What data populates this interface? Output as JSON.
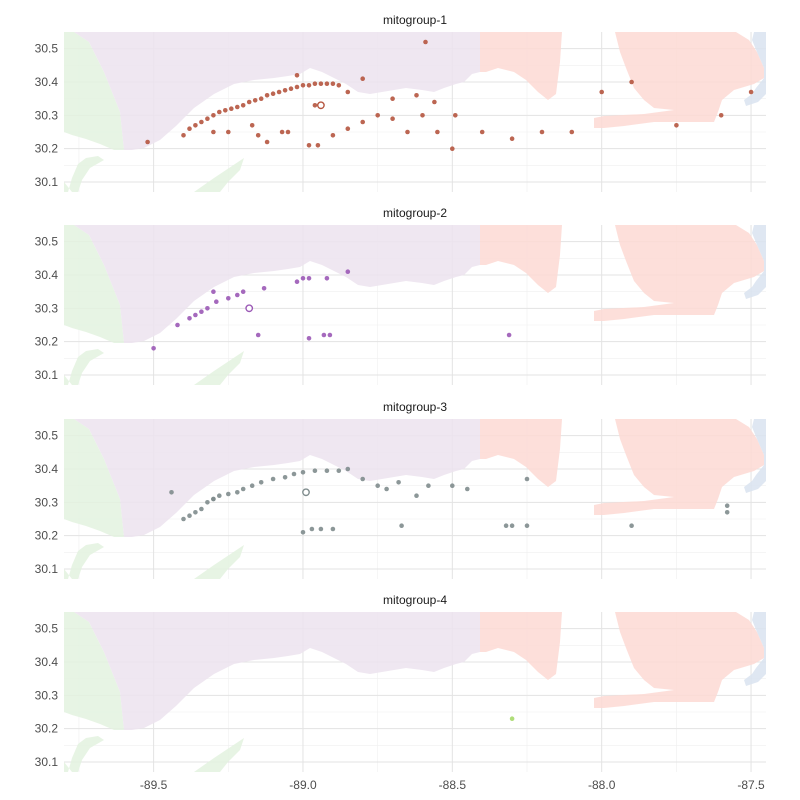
{
  "chart_data": {
    "type": "scatter",
    "title": "",
    "xlabel": "",
    "ylabel": "",
    "xlim": [
      -89.8,
      -87.45
    ],
    "ylim": [
      30.07,
      30.55
    ],
    "x_ticks": [
      "-89.5",
      "-89.0",
      "-88.5",
      "-88.0",
      "-87.5"
    ],
    "y_ticks": [
      "30.1",
      "30.2",
      "30.3",
      "30.4",
      "30.5"
    ],
    "grid": true,
    "region_colors": {
      "louisiana": "#e3f2df",
      "mississippi": "#ece3ef",
      "alabama": "#fdd9d4",
      "florida": "#d9e3f0"
    },
    "panels": [
      {
        "title": "mitogroup-1",
        "color": "#b5553f",
        "centroid": [
          -88.94,
          30.33
        ],
        "points": [
          [
            -89.52,
            30.22
          ],
          [
            -89.4,
            30.24
          ],
          [
            -89.38,
            30.26
          ],
          [
            -89.36,
            30.27
          ],
          [
            -89.34,
            30.28
          ],
          [
            -89.32,
            30.29
          ],
          [
            -89.3,
            30.3
          ],
          [
            -89.28,
            30.31
          ],
          [
            -89.26,
            30.315
          ],
          [
            -89.24,
            30.32
          ],
          [
            -89.22,
            30.325
          ],
          [
            -89.2,
            30.33
          ],
          [
            -89.18,
            30.34
          ],
          [
            -89.16,
            30.345
          ],
          [
            -89.14,
            30.35
          ],
          [
            -89.12,
            30.36
          ],
          [
            -89.1,
            30.365
          ],
          [
            -89.08,
            30.37
          ],
          [
            -89.06,
            30.375
          ],
          [
            -89.04,
            30.38
          ],
          [
            -89.02,
            30.385
          ],
          [
            -89.0,
            30.39
          ],
          [
            -88.98,
            30.39
          ],
          [
            -88.96,
            30.395
          ],
          [
            -88.94,
            30.395
          ],
          [
            -88.92,
            30.395
          ],
          [
            -88.9,
            30.395
          ],
          [
            -88.88,
            30.39
          ],
          [
            -89.3,
            30.25
          ],
          [
            -89.25,
            30.25
          ],
          [
            -89.17,
            30.27
          ],
          [
            -89.15,
            30.24
          ],
          [
            -89.12,
            30.22
          ],
          [
            -89.07,
            30.25
          ],
          [
            -89.05,
            30.25
          ],
          [
            -88.98,
            30.21
          ],
          [
            -88.95,
            30.21
          ],
          [
            -88.9,
            30.24
          ],
          [
            -88.85,
            30.26
          ],
          [
            -88.8,
            30.28
          ],
          [
            -88.75,
            30.3
          ],
          [
            -88.7,
            30.29
          ],
          [
            -88.65,
            30.25
          ],
          [
            -88.6,
            30.3
          ],
          [
            -88.55,
            30.25
          ],
          [
            -88.5,
            30.2
          ],
          [
            -88.4,
            30.25
          ],
          [
            -88.3,
            30.23
          ],
          [
            -88.2,
            30.25
          ],
          [
            -88.1,
            30.25
          ],
          [
            -88.0,
            30.37
          ],
          [
            -87.9,
            30.4
          ],
          [
            -87.75,
            30.27
          ],
          [
            -87.6,
            30.3
          ],
          [
            -87.5,
            30.37
          ],
          [
            -87.42,
            30.46
          ],
          [
            -88.85,
            30.37
          ],
          [
            -88.8,
            30.41
          ],
          [
            -88.7,
            30.35
          ],
          [
            -88.62,
            30.36
          ],
          [
            -88.56,
            30.34
          ],
          [
            -88.49,
            30.3
          ],
          [
            -88.59,
            30.52
          ],
          [
            -89.02,
            30.42
          ],
          [
            -88.96,
            30.33
          ]
        ]
      },
      {
        "title": "mitogroup-2",
        "color": "#9b59b6",
        "centroid": [
          -89.18,
          30.3
        ],
        "points": [
          [
            -89.5,
            30.18
          ],
          [
            -89.42,
            30.25
          ],
          [
            -89.38,
            30.27
          ],
          [
            -89.36,
            30.28
          ],
          [
            -89.34,
            30.29
          ],
          [
            -89.32,
            30.3
          ],
          [
            -89.29,
            30.32
          ],
          [
            -89.25,
            30.33
          ],
          [
            -89.22,
            30.34
          ],
          [
            -89.2,
            30.35
          ],
          [
            -89.13,
            30.36
          ],
          [
            -89.02,
            30.38
          ],
          [
            -89.0,
            30.39
          ],
          [
            -88.98,
            30.39
          ],
          [
            -88.92,
            30.39
          ],
          [
            -88.85,
            30.41
          ],
          [
            -89.3,
            30.35
          ],
          [
            -89.15,
            30.22
          ],
          [
            -88.98,
            30.21
          ],
          [
            -88.93,
            30.22
          ],
          [
            -88.91,
            30.22
          ],
          [
            -88.31,
            30.22
          ]
        ]
      },
      {
        "title": "mitogroup-3",
        "color": "#7f8c8d",
        "centroid": [
          -88.99,
          30.33
        ],
        "points": [
          [
            -89.4,
            30.25
          ],
          [
            -89.38,
            30.26
          ],
          [
            -89.36,
            30.27
          ],
          [
            -89.34,
            30.28
          ],
          [
            -89.32,
            30.3
          ],
          [
            -89.3,
            30.31
          ],
          [
            -89.28,
            30.32
          ],
          [
            -89.25,
            30.325
          ],
          [
            -89.22,
            30.33
          ],
          [
            -89.2,
            30.34
          ],
          [
            -89.17,
            30.35
          ],
          [
            -89.14,
            30.36
          ],
          [
            -89.1,
            30.37
          ],
          [
            -89.06,
            30.375
          ],
          [
            -89.03,
            30.385
          ],
          [
            -89.0,
            30.39
          ],
          [
            -88.96,
            30.395
          ],
          [
            -88.92,
            30.395
          ],
          [
            -88.88,
            30.395
          ],
          [
            -88.85,
            30.4
          ],
          [
            -88.8,
            30.37
          ],
          [
            -88.75,
            30.35
          ],
          [
            -88.72,
            30.34
          ],
          [
            -88.68,
            30.36
          ],
          [
            -88.62,
            30.32
          ],
          [
            -88.58,
            30.35
          ],
          [
            -88.5,
            30.35
          ],
          [
            -88.45,
            30.34
          ],
          [
            -88.25,
            30.37
          ],
          [
            -88.25,
            30.23
          ],
          [
            -88.3,
            30.23
          ],
          [
            -88.32,
            30.23
          ],
          [
            -88.67,
            30.23
          ],
          [
            -88.9,
            30.22
          ],
          [
            -88.94,
            30.22
          ],
          [
            -88.97,
            30.22
          ],
          [
            -89.0,
            30.21
          ],
          [
            -89.44,
            30.33
          ],
          [
            -89.3,
            30.31
          ],
          [
            -87.9,
            30.23
          ],
          [
            -87.58,
            30.29
          ],
          [
            -87.58,
            30.27
          ]
        ]
      },
      {
        "title": "mitogroup-4",
        "color": "#a6d96a",
        "centroid": null,
        "points": [
          [
            -88.3,
            30.23
          ]
        ]
      }
    ]
  }
}
